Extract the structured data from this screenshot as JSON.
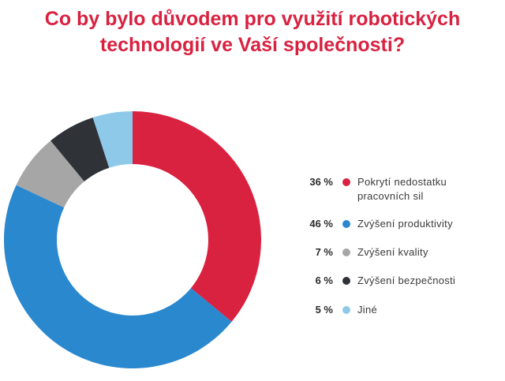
{
  "title_lines": [
    "Co by bylo důvodem pro využití robotických",
    "technologií ve Vaší společnosti?"
  ],
  "colors": {
    "title": "#d92140",
    "red": "#d92140",
    "blue": "#2a88cf",
    "gray": "#a6a6a6",
    "dark": "#2f3237",
    "light_blue": "#8ec9ea"
  },
  "chart_data": {
    "type": "pie",
    "variant": "donut",
    "start": "top, clockwise",
    "slices": [
      {
        "value_label": "36 %",
        "value": 36,
        "label_lines": [
          "Pokrytí nedostatku",
          "pracovních sil"
        ],
        "color": "#d92140"
      },
      {
        "value_label": "46 %",
        "value": 46,
        "label_lines": [
          "Zvýšení produktivity"
        ],
        "color": "#2a88cf"
      },
      {
        "value_label": "7 %",
        "value": 7,
        "label_lines": [
          "Zvýšení kvality"
        ],
        "color": "#a6a6a6"
      },
      {
        "value_label": "6 %",
        "value": 6,
        "label_lines": [
          "Zvýšení bezpečnosti"
        ],
        "color": "#2f3237"
      },
      {
        "value_label": "5 %",
        "value": 5,
        "label_lines": [
          "Jiné"
        ],
        "color": "#8ec9ea"
      }
    ],
    "legend_position": "right"
  }
}
